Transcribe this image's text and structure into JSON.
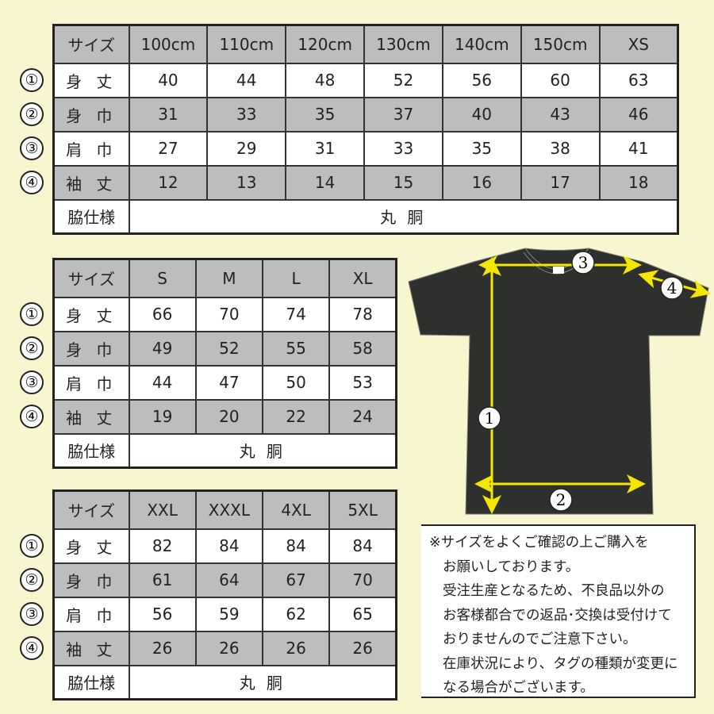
{
  "markers": [
    "①",
    "②",
    "③",
    "④"
  ],
  "row_labels": [
    "身 丈",
    "身 巾",
    "肩 巾",
    "袖 丈"
  ],
  "header_label": "サイズ",
  "side_label": "脇仕様",
  "side_value": "丸 胴",
  "tables": [
    {
      "sizes": [
        "100cm",
        "110cm",
        "120cm",
        "130cm",
        "140cm",
        "150cm",
        "XS"
      ],
      "rows": [
        [
          40,
          44,
          48,
          52,
          56,
          60,
          63
        ],
        [
          31,
          33,
          35,
          37,
          40,
          43,
          46
        ],
        [
          27,
          29,
          31,
          33,
          35,
          38,
          41
        ],
        [
          12,
          13,
          14,
          15,
          16,
          17,
          18
        ]
      ]
    },
    {
      "sizes": [
        "S",
        "M",
        "L",
        "XL"
      ],
      "rows": [
        [
          66,
          70,
          74,
          78
        ],
        [
          49,
          52,
          55,
          58
        ],
        [
          44,
          47,
          50,
          53
        ],
        [
          19,
          20,
          22,
          24
        ]
      ]
    },
    {
      "sizes": [
        "XXL",
        "XXXL",
        "4XL",
        "5XL"
      ],
      "rows": [
        [
          82,
          84,
          84,
          84
        ],
        [
          61,
          64,
          67,
          70
        ],
        [
          56,
          59,
          62,
          65
        ],
        [
          26,
          26,
          26,
          26
        ]
      ]
    }
  ],
  "diagram": {
    "labels": [
      "1",
      "2",
      "3",
      "4"
    ],
    "shirt_color": "#2e302e",
    "arrow_color": "#f5e600"
  },
  "notice": [
    "※サイズをよくご確認の上ご購入を",
    "お願いしております。",
    "受注生産となるため、不良品以外の",
    "お客様都合での返品･交換は受付けて",
    "おりませんのでご注意下さい。",
    "在庫状況により、タグの種類が変更に",
    "なる場合がございます。"
  ]
}
